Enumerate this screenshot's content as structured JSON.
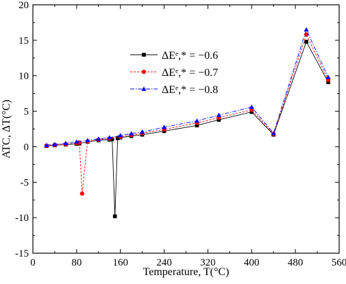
{
  "chart_data": {
    "type": "line",
    "title": "",
    "xlabel": "Temperature, T(°C)",
    "ylabel": "ATC, ΔT(°C)",
    "xlim": [
      0,
      560
    ],
    "ylim": [
      -15,
      20
    ],
    "xticks": [
      0,
      80,
      160,
      240,
      320,
      400,
      480,
      560
    ],
    "yticks": [
      -15,
      -10,
      -5,
      0,
      5,
      10,
      15,
      20
    ],
    "grid": false,
    "legend_position": "upper-center",
    "series": [
      {
        "name": "ΔEᵉ,* = −0.6",
        "color": "#000000",
        "marker": "square",
        "line_style": "solid",
        "x": [
          25,
          40,
          60,
          80,
          85,
          100,
          120,
          140,
          145,
          150,
          155,
          160,
          180,
          200,
          240,
          300,
          340,
          400,
          440,
          500,
          540
        ],
        "y": [
          0.1,
          0.2,
          0.3,
          0.4,
          0.45,
          0.7,
          0.9,
          1.0,
          1.05,
          -9.8,
          1.2,
          1.3,
          1.5,
          1.7,
          2.2,
          3.0,
          3.8,
          4.9,
          1.7,
          14.8,
          9.1
        ]
      },
      {
        "name": "ΔEᵉ,* = −0.7",
        "color": "#ff0000",
        "marker": "circle",
        "line_style": "dashed",
        "x": [
          25,
          40,
          60,
          80,
          85,
          90,
          100,
          120,
          140,
          160,
          180,
          200,
          240,
          300,
          340,
          400,
          440,
          500,
          540
        ],
        "y": [
          0.15,
          0.25,
          0.35,
          0.5,
          0.6,
          -6.6,
          0.75,
          1.0,
          1.15,
          1.4,
          1.65,
          1.9,
          2.45,
          3.35,
          4.1,
          5.2,
          1.8,
          15.8,
          9.4
        ]
      },
      {
        "name": "ΔEᵉ,* = −0.8",
        "color": "#0000ff",
        "marker": "triangle",
        "line_style": "dashdot",
        "x": [
          25,
          40,
          60,
          80,
          100,
          120,
          140,
          160,
          180,
          200,
          240,
          300,
          340,
          400,
          440,
          500,
          540
        ],
        "y": [
          0.2,
          0.35,
          0.5,
          0.7,
          0.9,
          1.1,
          1.3,
          1.6,
          1.85,
          2.1,
          2.75,
          3.65,
          4.45,
          5.6,
          1.9,
          16.5,
          9.8
        ]
      }
    ]
  }
}
